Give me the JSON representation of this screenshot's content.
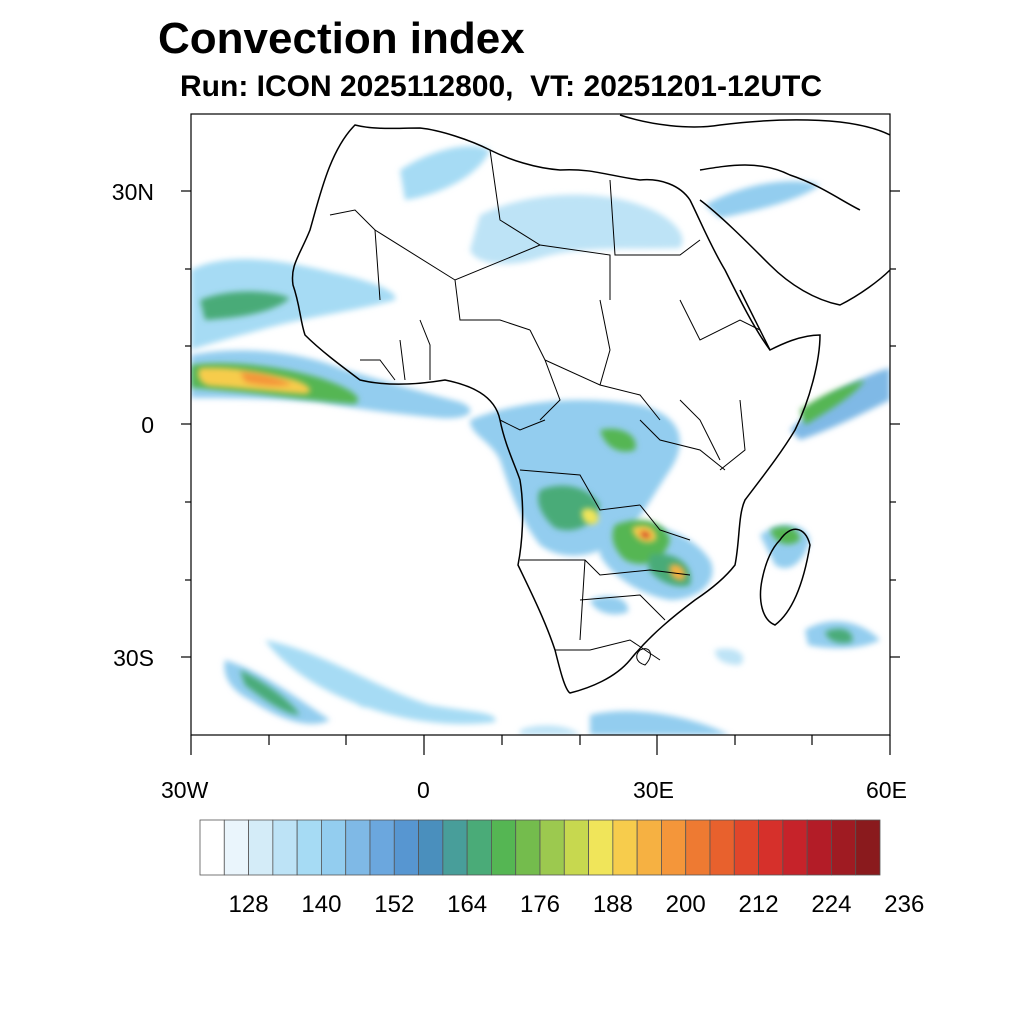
{
  "title": "Convection index",
  "subtitle": "Run: ICON 2025112800,  VT: 20251201-12UTC",
  "map": {
    "lon_range": [
      -30,
      60
    ],
    "lat_range": [
      -40,
      40
    ],
    "lat_labels": [
      {
        "lat": 30,
        "text": "30N"
      },
      {
        "lat": 0,
        "text": "0"
      },
      {
        "lat": -30,
        "text": "30S"
      }
    ],
    "lon_labels": [
      {
        "lon": -30,
        "text": "30W"
      },
      {
        "lon": 0,
        "text": "0"
      },
      {
        "lon": 30,
        "text": "30E"
      },
      {
        "lon": 60,
        "text": "60E"
      }
    ]
  },
  "colorbar": {
    "colors": [
      "#ffffff",
      "#eaf5fc",
      "#d4ecf8",
      "#bde3f6",
      "#a6dbf4",
      "#93cdef",
      "#7fb9e6",
      "#6ba7de",
      "#5796d1",
      "#4a8fbd",
      "#489e9a",
      "#4aab78",
      "#55b653",
      "#74bc4d",
      "#9cc94f",
      "#c7d84f",
      "#f0e55a",
      "#f7cc4c",
      "#f6b142",
      "#f4963a",
      "#ee7a32",
      "#e8612d",
      "#e0462b",
      "#d6302b",
      "#c6232a",
      "#b31c27",
      "#9f1b22",
      "#8a1a1d"
    ],
    "tick_labels": [
      "128",
      "140",
      "152",
      "164",
      "176",
      "188",
      "200",
      "212",
      "224",
      "236"
    ]
  }
}
